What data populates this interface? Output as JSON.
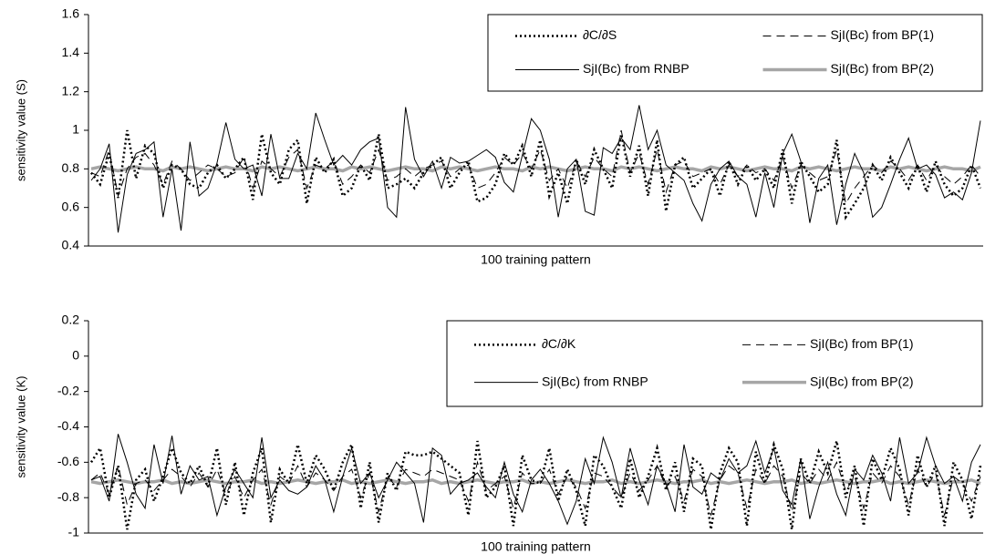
{
  "chart_data": [
    {
      "type": "line",
      "xlabel": "100 training pattern",
      "ylabel": "sensitivity value (S)",
      "ylim": [
        0.4,
        1.6
      ],
      "yticks": [
        0.4,
        0.6,
        0.8,
        1,
        1.2,
        1.4,
        1.6
      ],
      "legend": "top-right",
      "series": [
        {
          "name": "∂C/∂S",
          "color": "#000000",
          "style": "dotted",
          "values": [
            0.78,
            0.72,
            0.88,
            0.65,
            1.0,
            0.75,
            0.92,
            0.88,
            0.7,
            0.82,
            0.8,
            0.72,
            0.7,
            0.78,
            0.82,
            0.75,
            0.8,
            0.86,
            0.64,
            0.98,
            0.78,
            0.72,
            0.9,
            0.95,
            0.62,
            0.86,
            0.78,
            0.85,
            0.66,
            0.7,
            0.82,
            0.74,
            0.98,
            0.7,
            0.72,
            0.75,
            0.7,
            0.78,
            0.82,
            0.86,
            0.7,
            0.78,
            0.84,
            0.63,
            0.65,
            0.72,
            0.88,
            0.82,
            0.92,
            0.76,
            0.95,
            0.66,
            0.78,
            0.62,
            0.85,
            0.72,
            0.9,
            0.8,
            0.7,
            0.98,
            0.76,
            0.92,
            0.66,
            0.95,
            0.58,
            0.82,
            0.86,
            0.7,
            0.75,
            0.8,
            0.66,
            0.84,
            0.72,
            0.82,
            0.74,
            0.8,
            0.7,
            0.9,
            0.62,
            0.84,
            0.76,
            0.68,
            0.72,
            0.95,
            0.55,
            0.62,
            0.7,
            0.82,
            0.74,
            0.86,
            0.78,
            0.7,
            0.82,
            0.68,
            0.84,
            0.72,
            0.66,
            0.7,
            0.82,
            0.7
          ]
        },
        {
          "name": "SjI(Bc) from BP(1)",
          "color": "#000000",
          "style": "dashed",
          "values": [
            0.78,
            0.76,
            0.9,
            0.66,
            0.8,
            0.86,
            0.88,
            0.82,
            0.72,
            0.84,
            0.8,
            0.74,
            0.78,
            0.82,
            0.8,
            0.76,
            0.78,
            0.86,
            0.7,
            0.84,
            0.8,
            0.76,
            0.86,
            0.9,
            0.7,
            0.82,
            0.8,
            0.84,
            0.72,
            0.76,
            0.82,
            0.78,
            0.9,
            0.74,
            0.76,
            0.8,
            0.76,
            0.8,
            0.82,
            0.84,
            0.76,
            0.8,
            0.82,
            0.7,
            0.72,
            0.78,
            0.86,
            0.82,
            0.88,
            0.8,
            0.9,
            0.74,
            0.8,
            0.7,
            0.84,
            0.76,
            0.86,
            0.8,
            0.76,
            1.0,
            0.78,
            0.88,
            0.72,
            0.9,
            0.68,
            0.82,
            0.84,
            0.76,
            0.78,
            0.8,
            0.72,
            0.82,
            0.76,
            0.82,
            0.78,
            0.8,
            0.74,
            0.86,
            0.7,
            0.82,
            0.78,
            0.74,
            0.76,
            0.9,
            0.62,
            0.7,
            0.76,
            0.82,
            0.78,
            0.84,
            0.8,
            0.74,
            0.82,
            0.74,
            0.82,
            0.76,
            0.72,
            0.76,
            0.82,
            0.76
          ]
        },
        {
          "name": "SjI(Bc) from RNBP",
          "color": "#000000",
          "style": "solid",
          "values": [
            0.74,
            0.8,
            0.93,
            0.47,
            0.77,
            0.88,
            0.9,
            0.94,
            0.55,
            0.8,
            0.48,
            0.94,
            0.66,
            0.7,
            0.83,
            1.04,
            0.85,
            0.8,
            0.82,
            0.66,
            0.98,
            0.75,
            0.75,
            0.88,
            0.8,
            1.09,
            0.95,
            0.82,
            0.87,
            0.82,
            0.9,
            0.94,
            0.96,
            0.6,
            0.55,
            1.12,
            0.85,
            0.76,
            0.84,
            0.7,
            0.86,
            0.83,
            0.84,
            0.87,
            0.9,
            0.86,
            0.73,
            0.68,
            0.87,
            1.06,
            1.0,
            0.85,
            0.55,
            0.8,
            0.85,
            0.58,
            0.56,
            0.91,
            0.88,
            0.96,
            0.9,
            1.13,
            0.9,
            1.0,
            0.82,
            0.78,
            0.74,
            0.62,
            0.53,
            0.72,
            0.8,
            0.84,
            0.76,
            0.72,
            0.55,
            0.78,
            0.6,
            0.88,
            0.98,
            0.84,
            0.52,
            0.75,
            0.82,
            0.51,
            0.72,
            0.88,
            0.78,
            0.55,
            0.6,
            0.72,
            0.85,
            0.96,
            0.8,
            0.82,
            0.77,
            0.65,
            0.68,
            0.64,
            0.78,
            1.05
          ]
        },
        {
          "name": "SjI(Bc) from BP(2)",
          "color": "#a6a6a6",
          "style": "double",
          "values": [
            0.8,
            0.81,
            0.8,
            0.79,
            0.8,
            0.81,
            0.8,
            0.8,
            0.79,
            0.81,
            0.8,
            0.81,
            0.8,
            0.79,
            0.8,
            0.81,
            0.8,
            0.8,
            0.79,
            0.81,
            0.8,
            0.81,
            0.8,
            0.79,
            0.8,
            0.81,
            0.8,
            0.8,
            0.79,
            0.81,
            0.8,
            0.81,
            0.8,
            0.79,
            0.8,
            0.81,
            0.8,
            0.8,
            0.79,
            0.81,
            0.8,
            0.81,
            0.8,
            0.79,
            0.8,
            0.81,
            0.8,
            0.8,
            0.79,
            0.81,
            0.8,
            0.81,
            0.8,
            0.79,
            0.8,
            0.81,
            0.8,
            0.8,
            0.79,
            0.81,
            0.8,
            0.81,
            0.8,
            0.79,
            0.8,
            0.81,
            0.8,
            0.8,
            0.79,
            0.81,
            0.8,
            0.81,
            0.8,
            0.79,
            0.8,
            0.81,
            0.8,
            0.8,
            0.79,
            0.81,
            0.8,
            0.81,
            0.8,
            0.79,
            0.8,
            0.81,
            0.8,
            0.8,
            0.79,
            0.81,
            0.8,
            0.81,
            0.8,
            0.79,
            0.8,
            0.81,
            0.8,
            0.8,
            0.79,
            0.81
          ]
        }
      ]
    },
    {
      "type": "line",
      "xlabel": "100 training pattern",
      "ylabel": "sensitivity value (K)",
      "ylim": [
        -1,
        0.2
      ],
      "yticks": [
        -1,
        -0.8,
        -0.6,
        -0.4,
        -0.2,
        0,
        0.2
      ],
      "legend": "top-right",
      "series": [
        {
          "name": "∂C/∂K",
          "color": "#000000",
          "style": "dotted",
          "values": [
            -0.6,
            -0.52,
            -0.8,
            -0.62,
            -0.98,
            -0.7,
            -0.64,
            -0.82,
            -0.68,
            -0.52,
            -0.66,
            -0.72,
            -0.62,
            -0.74,
            -0.52,
            -0.84,
            -0.6,
            -0.9,
            -0.66,
            -0.52,
            -0.94,
            -0.64,
            -0.72,
            -0.5,
            -0.72,
            -0.56,
            -0.64,
            -0.76,
            -0.6,
            -0.5,
            -0.86,
            -0.6,
            -0.94,
            -0.66,
            -0.76,
            -0.54,
            -0.56,
            -0.56,
            -0.54,
            -0.58,
            -0.62,
            -0.66,
            -0.9,
            -0.48,
            -0.8,
            -0.74,
            -0.62,
            -0.96,
            -0.56,
            -0.7,
            -0.72,
            -0.52,
            -0.82,
            -0.64,
            -0.76,
            -0.96,
            -0.56,
            -0.62,
            -0.74,
            -0.86,
            -0.58,
            -0.8,
            -0.68,
            -0.52,
            -0.76,
            -0.6,
            -0.88,
            -0.58,
            -0.62,
            -0.98,
            -0.66,
            -0.52,
            -0.6,
            -0.96,
            -0.54,
            -0.72,
            -0.5,
            -0.64,
            -0.98,
            -0.58,
            -0.72,
            -0.54,
            -0.66,
            -0.48,
            -0.8,
            -0.62,
            -0.96,
            -0.58,
            -0.7,
            -0.52,
            -0.64,
            -0.9,
            -0.56,
            -0.74,
            -0.62,
            -0.96,
            -0.6,
            -0.7,
            -0.92,
            -0.62
          ]
        },
        {
          "name": "SjI(Bc) from BP(1)",
          "color": "#000000",
          "style": "dashed",
          "values": [
            -0.7,
            -0.66,
            -0.78,
            -0.62,
            -0.84,
            -0.72,
            -0.7,
            -0.76,
            -0.7,
            -0.64,
            -0.68,
            -0.74,
            -0.66,
            -0.74,
            -0.64,
            -0.78,
            -0.68,
            -0.8,
            -0.7,
            -0.64,
            -0.84,
            -0.68,
            -0.72,
            -0.62,
            -0.74,
            -0.66,
            -0.7,
            -0.76,
            -0.68,
            -0.64,
            -0.8,
            -0.66,
            -0.88,
            -0.68,
            -0.74,
            -0.64,
            -0.66,
            -0.68,
            -0.64,
            -0.66,
            -0.68,
            -0.7,
            -0.82,
            -0.6,
            -0.76,
            -0.72,
            -0.68,
            -0.86,
            -0.66,
            -0.72,
            -0.72,
            -0.64,
            -0.78,
            -0.68,
            -0.74,
            -0.86,
            -0.66,
            -0.68,
            -0.74,
            -0.8,
            -0.66,
            -0.76,
            -0.7,
            -0.62,
            -0.74,
            -0.68,
            -0.82,
            -0.64,
            -0.68,
            -0.9,
            -0.7,
            -0.62,
            -0.66,
            -0.86,
            -0.64,
            -0.72,
            -0.62,
            -0.68,
            -0.88,
            -0.66,
            -0.72,
            -0.64,
            -0.7,
            -0.6,
            -0.76,
            -0.68,
            -0.86,
            -0.66,
            -0.72,
            -0.62,
            -0.68,
            -0.84,
            -0.64,
            -0.74,
            -0.66,
            -0.9,
            -0.68,
            -0.72,
            -0.82,
            -0.68
          ]
        },
        {
          "name": "SjI(Bc) from RNBP",
          "color": "#000000",
          "style": "solid",
          "values": [
            -0.7,
            -0.68,
            -0.82,
            -0.44,
            -0.6,
            -0.78,
            -0.86,
            -0.5,
            -0.72,
            -0.45,
            -0.78,
            -0.62,
            -0.7,
            -0.68,
            -0.9,
            -0.74,
            -0.64,
            -0.72,
            -0.8,
            -0.46,
            -0.8,
            -0.7,
            -0.76,
            -0.78,
            -0.74,
            -0.62,
            -0.7,
            -0.88,
            -0.68,
            -0.52,
            -0.72,
            -0.66,
            -0.8,
            -0.7,
            -0.6,
            -0.66,
            -0.72,
            -0.94,
            -0.52,
            -0.56,
            -0.78,
            -0.72,
            -0.7,
            -0.66,
            -0.74,
            -0.8,
            -0.6,
            -0.78,
            -0.88,
            -0.7,
            -0.64,
            -0.72,
            -0.82,
            -0.95,
            -0.82,
            -0.58,
            -0.72,
            -0.46,
            -0.6,
            -0.8,
            -0.52,
            -0.7,
            -0.84,
            -0.62,
            -0.72,
            -0.88,
            -0.5,
            -0.74,
            -0.78,
            -0.66,
            -0.7,
            -0.58,
            -0.66,
            -0.62,
            -0.48,
            -0.66,
            -0.52,
            -0.76,
            -0.84,
            -0.58,
            -0.92,
            -0.74,
            -0.6,
            -0.78,
            -0.9,
            -0.64,
            -0.7,
            -0.56,
            -0.66,
            -0.82,
            -0.46,
            -0.72,
            -0.66,
            -0.46,
            -0.62,
            -0.72,
            -0.68,
            -0.82,
            -0.6,
            -0.5
          ]
        },
        {
          "name": "SjI(Bc) from BP(2)",
          "color": "#a6a6a6",
          "style": "double",
          "values": [
            -0.71,
            -0.72,
            -0.71,
            -0.7,
            -0.71,
            -0.72,
            -0.71,
            -0.71,
            -0.7,
            -0.72,
            -0.71,
            -0.72,
            -0.71,
            -0.7,
            -0.71,
            -0.72,
            -0.71,
            -0.71,
            -0.7,
            -0.72,
            -0.71,
            -0.72,
            -0.71,
            -0.7,
            -0.71,
            -0.72,
            -0.71,
            -0.71,
            -0.7,
            -0.72,
            -0.71,
            -0.72,
            -0.71,
            -0.7,
            -0.71,
            -0.72,
            -0.71,
            -0.71,
            -0.7,
            -0.72,
            -0.71,
            -0.72,
            -0.71,
            -0.7,
            -0.71,
            -0.72,
            -0.71,
            -0.71,
            -0.7,
            -0.72,
            -0.71,
            -0.72,
            -0.71,
            -0.7,
            -0.71,
            -0.72,
            -0.71,
            -0.71,
            -0.7,
            -0.72,
            -0.71,
            -0.72,
            -0.71,
            -0.7,
            -0.71,
            -0.72,
            -0.71,
            -0.71,
            -0.7,
            -0.72,
            -0.71,
            -0.72,
            -0.71,
            -0.7,
            -0.71,
            -0.72,
            -0.71,
            -0.71,
            -0.7,
            -0.72,
            -0.71,
            -0.72,
            -0.71,
            -0.7,
            -0.71,
            -0.72,
            -0.71,
            -0.71,
            -0.7,
            -0.72,
            -0.71,
            -0.72,
            -0.71,
            -0.7,
            -0.71,
            -0.72,
            -0.71,
            -0.71,
            -0.7,
            -0.72
          ]
        }
      ]
    }
  ]
}
